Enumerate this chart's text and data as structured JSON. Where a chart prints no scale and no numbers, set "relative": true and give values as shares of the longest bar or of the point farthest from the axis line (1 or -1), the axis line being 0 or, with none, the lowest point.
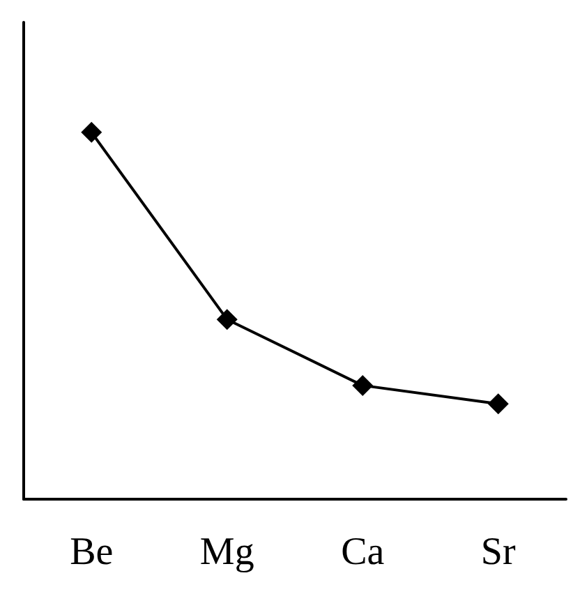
{
  "chart_data": {
    "type": "line",
    "categories": [
      "Be",
      "Mg",
      "Ca",
      "Sr"
    ],
    "series": [
      {
        "color": "#000000",
        "values": [
          1,
          0.49,
          0.31,
          0.26
        ]
      }
    ],
    "relative": true,
    "marker": "diamond",
    "line_style": "solid",
    "grid": false
  }
}
